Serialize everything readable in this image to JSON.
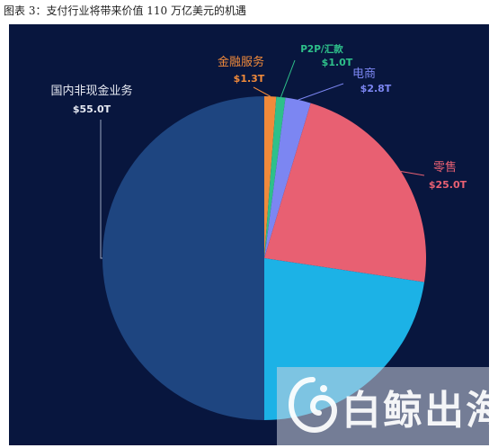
{
  "caption": "图表 3：支付行业将带来价值 110 万亿美元的机遇",
  "watermark": {
    "text": "白鲸出海",
    "icon": "whale-logo-icon"
  },
  "chart_data": {
    "type": "pie",
    "title": "",
    "unit": "T",
    "start_angle_deg": 0,
    "direction": "clockwise",
    "slices": [
      {
        "name": "金融服务",
        "value_label": "$1.3T",
        "value": 1.3,
        "color": "#f08a3b"
      },
      {
        "name": "P2P/汇款",
        "value_label": "$1.0T",
        "value": 1.0,
        "color": "#2ec08a"
      },
      {
        "name": "电商",
        "value_label": "$2.8T",
        "value": 2.8,
        "color": "#7c86f2"
      },
      {
        "name": "零售",
        "value_label": "$25.0T",
        "value": 25.0,
        "color": "#e86072"
      },
      {
        "name": "",
        "value_label": "",
        "value": 24.9,
        "color": "#1cb2e6"
      },
      {
        "name": "国内非现金业务",
        "value_label": "$55.0T",
        "value": 55.0,
        "color": "#1e4580"
      }
    ]
  }
}
